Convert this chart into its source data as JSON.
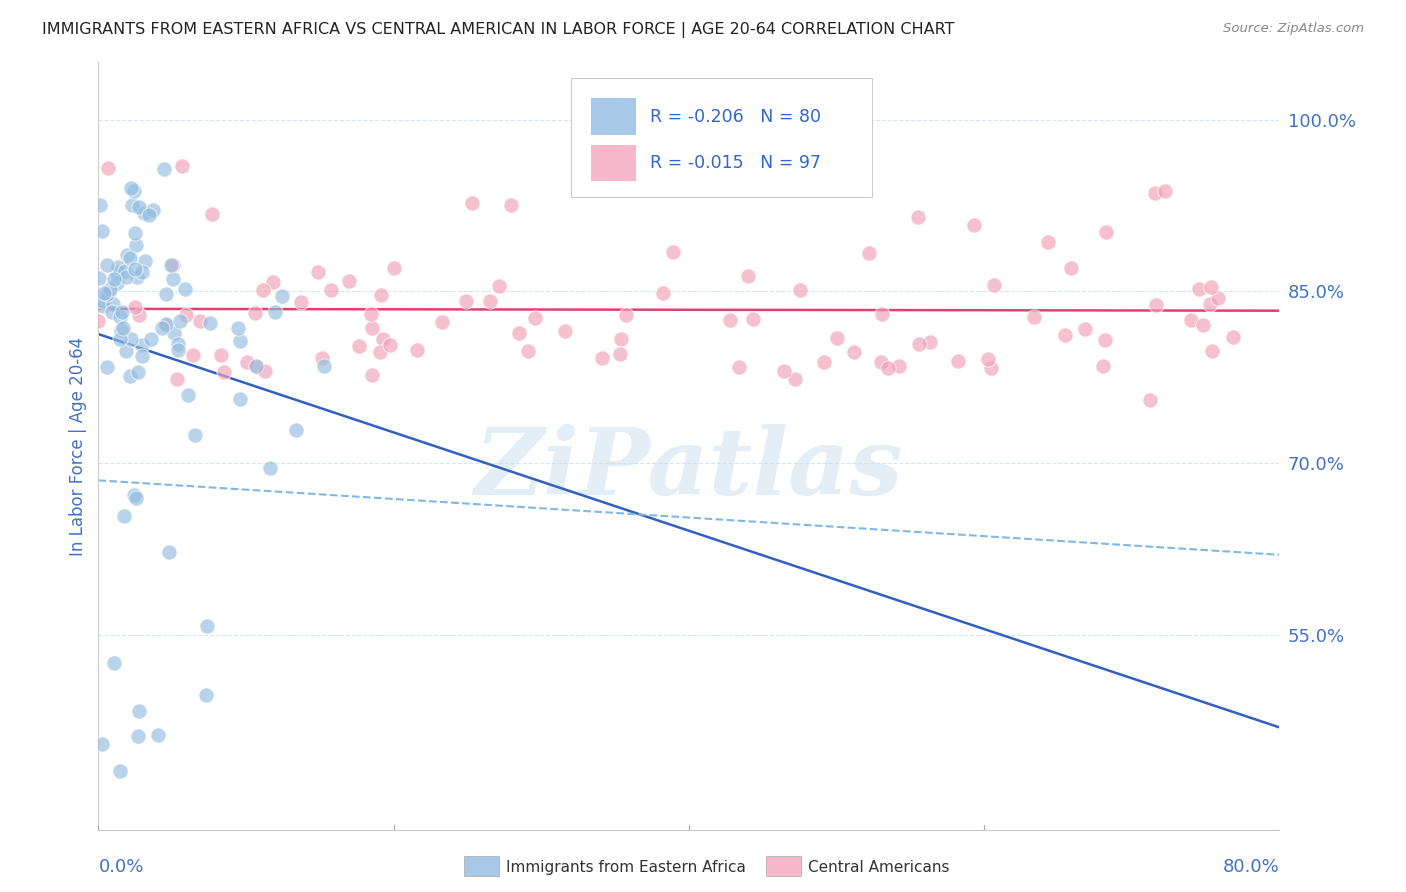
{
  "title": "IMMIGRANTS FROM EASTERN AFRICA VS CENTRAL AMERICAN IN LABOR FORCE | AGE 20-64 CORRELATION CHART",
  "source": "Source: ZipAtlas.com",
  "ylabel": "In Labor Force | Age 20-64",
  "xlim": [
    0.0,
    0.8
  ],
  "ylim": [
    0.38,
    1.05
  ],
  "ytick_vals": [
    0.55,
    0.7,
    0.85,
    1.0
  ],
  "ytick_labs": [
    "55.0%",
    "70.0%",
    "85.0%",
    "100.0%"
  ],
  "series1_label": "Immigrants from Eastern Africa",
  "series1_R": -0.206,
  "series1_N": 80,
  "series1_dot_color": "#92bce0",
  "series1_line_color": "#3060c0",
  "series2_label": "Central Americans",
  "series2_R": -0.015,
  "series2_N": 97,
  "series2_dot_color": "#f0a0b8",
  "series2_line_color": "#e04070",
  "series2_dash_color": "#80b8e0",
  "background_color": "#ffffff",
  "grid_color": "#d0dde8",
  "axis_color": "#4472c4",
  "title_color": "#222222",
  "legend_bg": "#ffffff",
  "legend_border": "#cccccc",
  "legend_box1": "#a8c8e8",
  "legend_box2": "#f8b8cc",
  "legend_text_color": "#3366cc",
  "watermark": "ZiPatlas",
  "watermark_color": "#cce0f0"
}
